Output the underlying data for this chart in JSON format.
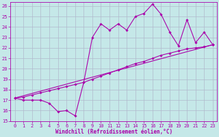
{
  "xlabel": "Windchill (Refroidissement éolien,°C)",
  "bg_color": "#c5e8e8",
  "line_color": "#aa00aa",
  "grid_color": "#b0b8cc",
  "xlim": [
    -0.5,
    23.5
  ],
  "ylim": [
    15,
    26.4
  ],
  "xticks": [
    0,
    1,
    2,
    3,
    4,
    5,
    6,
    7,
    8,
    9,
    10,
    11,
    12,
    13,
    14,
    15,
    16,
    17,
    18,
    19,
    20,
    21,
    22,
    23
  ],
  "yticks": [
    15,
    16,
    17,
    18,
    19,
    20,
    21,
    22,
    23,
    24,
    25,
    26
  ],
  "series1_x": [
    0,
    1,
    2,
    3,
    4,
    5,
    6,
    7,
    8,
    9,
    10,
    11,
    12,
    13,
    14,
    15,
    16,
    17,
    18,
    19,
    20,
    21,
    22,
    23
  ],
  "series1_y": [
    17.2,
    17.0,
    17.0,
    17.0,
    16.7,
    15.9,
    16.0,
    15.5,
    18.7,
    23.0,
    24.3,
    23.7,
    24.3,
    23.7,
    25.0,
    25.3,
    26.2,
    25.2,
    23.5,
    22.2,
    24.7,
    22.5,
    23.5,
    22.3
  ],
  "series2_x": [
    0,
    23
  ],
  "series2_y": [
    17.2,
    22.3
  ],
  "series3_x": [
    0,
    1,
    2,
    3,
    4,
    5,
    6,
    7,
    8,
    9,
    10,
    11,
    12,
    13,
    14,
    15,
    16,
    17,
    18,
    19,
    20,
    21,
    22,
    23
  ],
  "series3_y": [
    17.2,
    17.3,
    17.5,
    17.7,
    17.9,
    18.1,
    18.3,
    18.5,
    18.7,
    19.0,
    19.3,
    19.6,
    19.9,
    20.2,
    20.5,
    20.7,
    21.0,
    21.3,
    21.5,
    21.7,
    21.9,
    22.0,
    22.1,
    22.3
  ],
  "marker": "D",
  "marker_size": 1.8,
  "linewidth": 0.8,
  "tick_fontsize": 5.0,
  "xlabel_fontsize": 5.5
}
